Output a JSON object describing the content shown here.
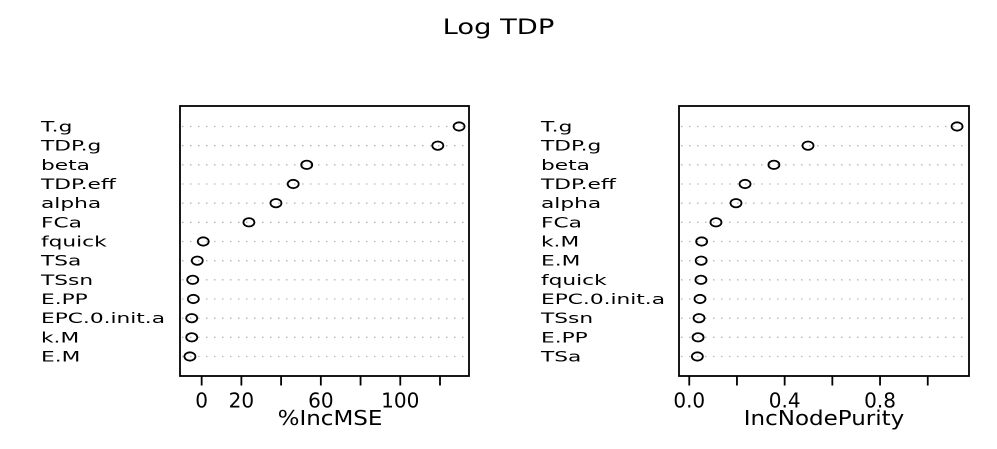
{
  "figure": {
    "title": "Log TDP"
  },
  "colors": {
    "foreground": "#000000",
    "background": "#ffffff",
    "gridline": "#b9b9b9"
  },
  "chart_data": [
    {
      "type": "scatter",
      "variant": "dotchart",
      "panel": "left",
      "xlabel": "%IncMSE",
      "categories": [
        "T.g",
        "TDP.g",
        "beta",
        "TDP.eff",
        "alpha",
        "FCa",
        "fquick",
        "TSa",
        "TSsn",
        "E.PP",
        "EPC.0.init.a",
        "k.M",
        "E.M"
      ],
      "values": [
        129.6,
        118.9,
        52.9,
        46.1,
        37.4,
        23.8,
        0.8,
        -2.2,
        -4.5,
        -4.2,
        -5.0,
        -5.0,
        -5.9
      ],
      "xlim": [
        -10.9,
        134.6
      ],
      "xticks": [
        0,
        20,
        40,
        60,
        80,
        100,
        120
      ],
      "xtick_labels": [
        "0",
        "20",
        "",
        "60",
        "",
        "100",
        ""
      ],
      "grid": "horizontal-dotted",
      "marker": "open-circle"
    },
    {
      "type": "scatter",
      "variant": "dotchart",
      "panel": "right",
      "xlabel": "IncNodePurity",
      "categories": [
        "T.g",
        "TDP.g",
        "beta",
        "TDP.eff",
        "alpha",
        "FCa",
        "k.M",
        "E.M",
        "fquick",
        "EPC.0.init.a",
        "TSsn",
        "E.PP",
        "TSa"
      ],
      "values": [
        1.123,
        0.498,
        0.355,
        0.234,
        0.196,
        0.112,
        0.052,
        0.05,
        0.049,
        0.045,
        0.041,
        0.037,
        0.034
      ],
      "xlim": [
        -0.043,
        1.173
      ],
      "xticks": [
        0.0,
        0.2,
        0.4,
        0.6,
        0.8,
        1.0
      ],
      "xtick_labels": [
        "0.0",
        "",
        "0.4",
        "",
        "0.8",
        ""
      ],
      "grid": "horizontal-dotted",
      "marker": "open-circle"
    }
  ]
}
